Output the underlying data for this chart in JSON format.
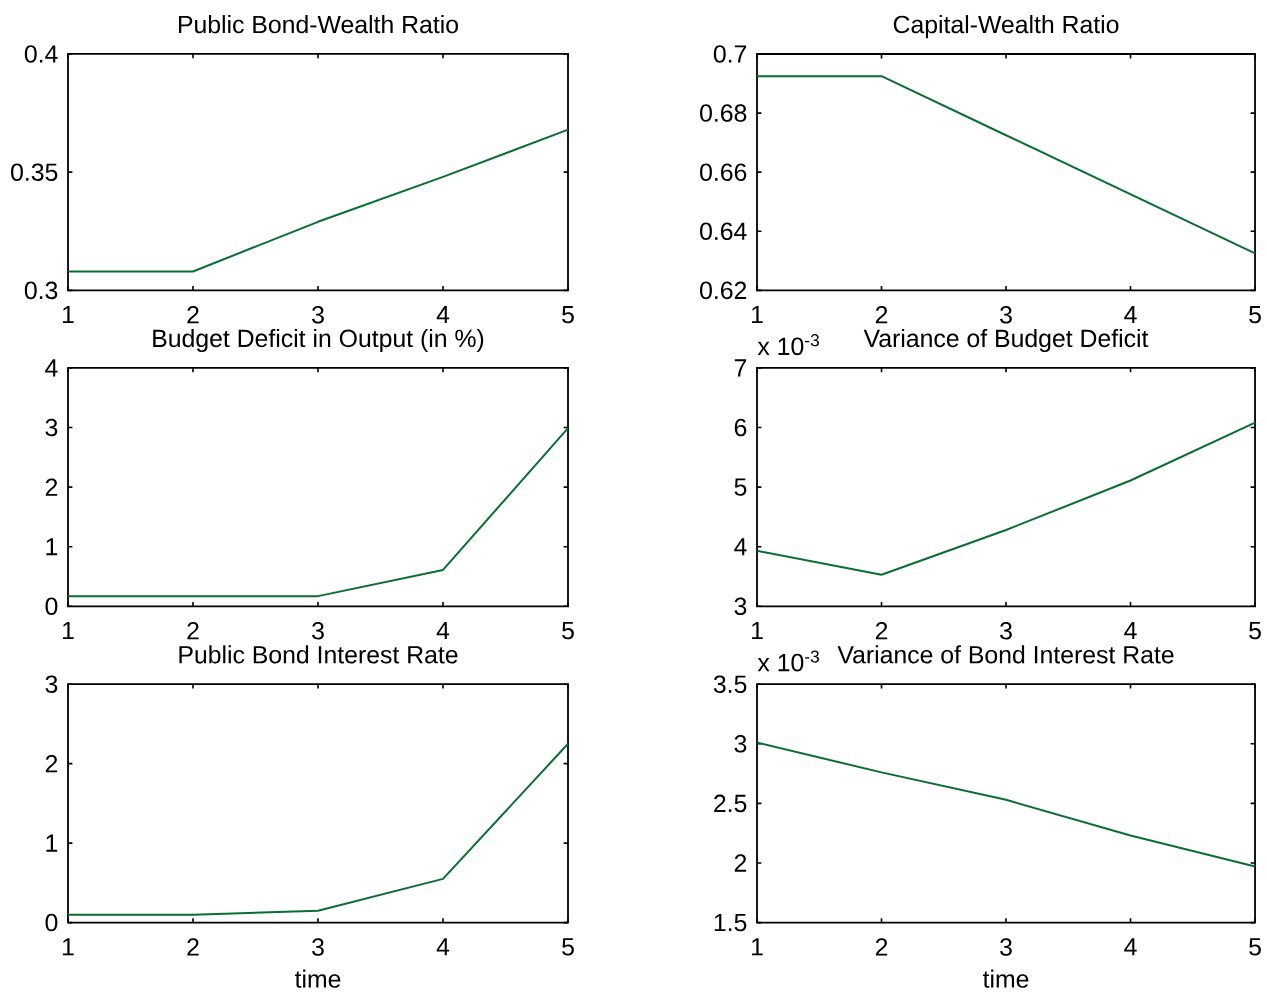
{
  "chart_data": [
    {
      "type": "line",
      "title": "Public Bond-Wealth Ratio",
      "x": [
        1,
        2,
        3,
        4,
        5
      ],
      "values": [
        0.308,
        0.308,
        0.329,
        0.348,
        0.368
      ],
      "color": "#0a6e32",
      "xlim": [
        1,
        5
      ],
      "xticks": [
        1,
        2,
        3,
        4,
        5
      ],
      "ylim": [
        0.3,
        0.4
      ],
      "yticks": [
        0.3,
        0.35,
        0.4
      ]
    },
    {
      "type": "line",
      "title": "Capital-Wealth Ratio",
      "x": [
        1,
        2,
        3,
        4,
        5
      ],
      "values": [
        0.6925,
        0.6925,
        0.6725,
        0.6525,
        0.6325
      ],
      "color": "#0a6e32",
      "xlim": [
        1,
        5
      ],
      "xticks": [
        1,
        2,
        3,
        4,
        5
      ],
      "ylim": [
        0.62,
        0.7
      ],
      "yticks": [
        0.62,
        0.64,
        0.66,
        0.68,
        0.7
      ]
    },
    {
      "type": "line",
      "title": "Budget Deficit in Output (in %)",
      "x": [
        1,
        2,
        3,
        4,
        5
      ],
      "values": [
        0.17,
        0.17,
        0.17,
        0.61,
        2.99
      ],
      "color": "#0a6e32",
      "xlim": [
        1,
        5
      ],
      "xticks": [
        1,
        2,
        3,
        4,
        5
      ],
      "ylim": [
        0,
        4
      ],
      "yticks": [
        0,
        1,
        2,
        3,
        4
      ]
    },
    {
      "type": "line",
      "title": "Variance of Budget Deficit",
      "annotations": [
        "x 10$^{-3}$"
      ],
      "x": [
        1,
        2,
        3,
        4,
        5
      ],
      "values": [
        3.93,
        3.53,
        4.28,
        5.11,
        6.08
      ],
      "color": "#0a6e32",
      "xlim": [
        1,
        5
      ],
      "xticks": [
        1,
        2,
        3,
        4,
        5
      ],
      "ylim": [
        3,
        7
      ],
      "yticks": [
        3,
        4,
        5,
        6,
        7
      ]
    },
    {
      "type": "line",
      "title": "Public Bond Interest Rate",
      "xlabel": "time",
      "x": [
        1,
        2,
        3,
        4,
        5
      ],
      "values": [
        0.1,
        0.1,
        0.15,
        0.55,
        2.25
      ],
      "color": "#0a6e32",
      "xlim": [
        1,
        5
      ],
      "xticks": [
        1,
        2,
        3,
        4,
        5
      ],
      "ylim": [
        0,
        3
      ],
      "yticks": [
        0,
        1,
        2,
        3
      ]
    },
    {
      "type": "line",
      "title": "Variance of Bond Interest Rate",
      "xlabel": "time",
      "annotations": [
        "x 10$^{-3}$"
      ],
      "x": [
        1,
        2,
        3,
        4,
        5
      ],
      "values": [
        3.01,
        2.76,
        2.53,
        2.23,
        1.97
      ],
      "color": "#0a6e32",
      "xlim": [
        1,
        5
      ],
      "xticks": [
        1,
        2,
        3,
        4,
        5
      ],
      "ylim": [
        1.5,
        3.5
      ],
      "yticks": [
        1.5,
        2,
        2.5,
        3,
        3.5
      ]
    }
  ]
}
